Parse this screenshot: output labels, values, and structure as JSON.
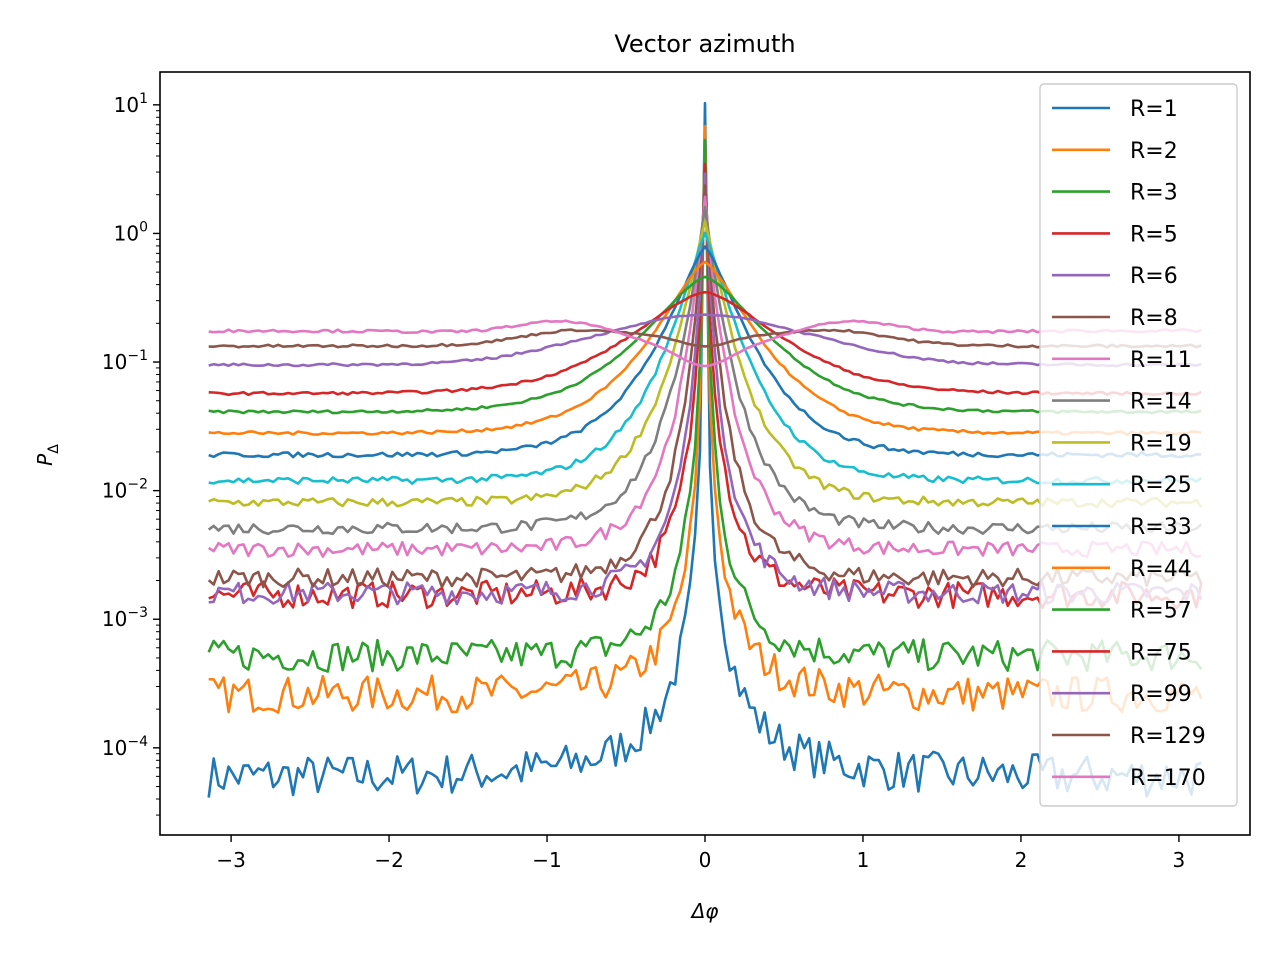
{
  "chart_data": {
    "type": "line",
    "title": "Vector azimuth",
    "xlabel": "Δφ",
    "ylabel_main": "P",
    "ylabel_sub": "Δ",
    "xlim": [
      -3.45,
      3.45
    ],
    "ylim": [
      2.1e-05,
      18
    ],
    "yscale": "log",
    "x_ticks": [
      -3,
      -2,
      -1,
      0,
      1,
      2,
      3
    ],
    "x_tick_labels": [
      "−3",
      "−2",
      "−1",
      "0",
      "1",
      "2",
      "3"
    ],
    "y_ticks": [
      0.0001,
      0.001,
      0.01,
      0.1,
      1,
      10
    ],
    "y_tick_labels": [
      {
        "base": "10",
        "exp": "−4"
      },
      {
        "base": "10",
        "exp": "−3"
      },
      {
        "base": "10",
        "exp": "−2"
      },
      {
        "base": "10",
        "exp": "−1"
      },
      {
        "base": "10",
        "exp": "0"
      },
      {
        "base": "10",
        "exp": "1"
      }
    ],
    "x_domain": [
      -3.1416,
      3.1416
    ],
    "legend_position": "upper-right",
    "grid": false,
    "series": [
      {
        "name": "R=1",
        "color": "#1f77b4",
        "peak": 10.0,
        "edge": 6e-05
      },
      {
        "name": "R=2",
        "color": "#ff7f0e",
        "peak": 7.0,
        "edge": 0.00026
      },
      {
        "name": "R=3",
        "color": "#2ca02c",
        "peak": 5.3,
        "edge": 0.00052
      },
      {
        "name": "R=5",
        "color": "#d62728",
        "peak": 3.6,
        "edge": 0.00155
      },
      {
        "name": "R=6",
        "color": "#9467bd",
        "peak": 3.0,
        "edge": 0.0016
      },
      {
        "name": "R=8",
        "color": "#8c564b",
        "peak": 2.4,
        "edge": 0.0021
      },
      {
        "name": "R=11",
        "color": "#e377c2",
        "peak": 1.95,
        "edge": 0.0035
      },
      {
        "name": "R=14",
        "color": "#7f7f7f",
        "peak": 1.6,
        "edge": 0.0051
      },
      {
        "name": "R=19",
        "color": "#bcbd22",
        "peak": 1.25,
        "edge": 0.0081
      },
      {
        "name": "R=25",
        "color": "#17becf",
        "peak": 1.0,
        "edge": 0.012
      },
      {
        "name": "R=33",
        "color": "#1f77b4",
        "peak": 0.79,
        "edge": 0.019
      },
      {
        "name": "R=44",
        "color": "#ff7f0e",
        "peak": 0.6,
        "edge": 0.028
      },
      {
        "name": "R=57",
        "color": "#2ca02c",
        "peak": 0.46,
        "edge": 0.041
      },
      {
        "name": "R=75",
        "color": "#d62728",
        "peak": 0.35,
        "edge": 0.057
      },
      {
        "name": "R=99",
        "color": "#9467bd",
        "peak": 0.255,
        "edge": 0.095
      },
      {
        "name": "R=129",
        "color": "#8c564b",
        "peak": 0.16,
        "edge": 0.133
      },
      {
        "name": "R=170",
        "color": "#e377c2",
        "peak": 0.125,
        "edge": 0.175
      }
    ]
  }
}
